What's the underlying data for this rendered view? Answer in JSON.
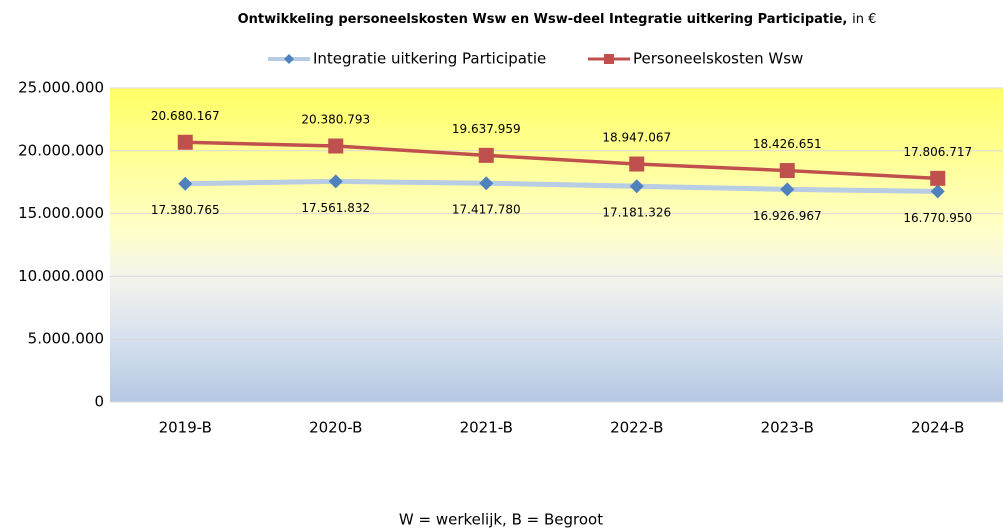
{
  "chart_data": {
    "type": "line",
    "title": "Ontwikkeling personeelskosten Wsw en Wsw-deel Integratie uitkering Participatie,",
    "title_unit": "in €",
    "categories": [
      "2019-B",
      "2020-B",
      "2021-B",
      "2022-B",
      "2023-B",
      "2024-B"
    ],
    "series": [
      {
        "name": "Integratie uitkering Participatie",
        "color": "#4f81bd",
        "line_color": "#b8cce4",
        "marker": "diamond",
        "values": [
          17380765,
          17561832,
          17417780,
          17181326,
          16926967,
          16770950
        ],
        "value_labels": [
          "17.380.765",
          "17.561.832",
          "17.417.780",
          "17.181.326",
          "16.926.967",
          "16.770.950"
        ]
      },
      {
        "name": "Personeelskosten Wsw",
        "color": "#c0504d",
        "line_color": "#c0504d",
        "marker": "square",
        "values": [
          20680167,
          20380793,
          19637959,
          18947067,
          18426651,
          17806717
        ],
        "value_labels": [
          "20.680.167",
          "20.380.793",
          "19.637.959",
          "18.947.067",
          "18.426.651",
          "17.806.717"
        ]
      }
    ],
    "ylim": [
      0,
      25000000
    ],
    "yticks": [
      0,
      {
        "value": 5000000,
        "label": "5.000.000"
      },
      {
        "value": 10000000,
        "label": "10.000.000"
      },
      {
        "value": 15000000,
        "label": "15.000.000"
      },
      {
        "value": 20000000,
        "label": "20.000.000"
      },
      {
        "value": 25000000,
        "label": "25.000.000"
      }
    ],
    "grid": true,
    "legend": "top",
    "footnote": "W = werkelijk, B = Begroot"
  }
}
